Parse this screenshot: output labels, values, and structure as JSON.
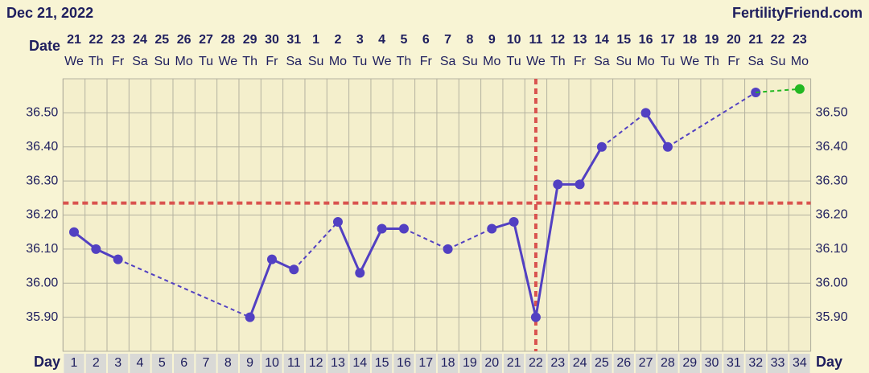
{
  "chart_data": {
    "type": "line",
    "title": "Dec 21, 2022",
    "source": "FertilityFriend.com",
    "date_label": "Date",
    "day_label": "Day",
    "dates": [
      "21",
      "22",
      "23",
      "24",
      "25",
      "26",
      "27",
      "28",
      "29",
      "30",
      "31",
      "1",
      "2",
      "3",
      "4",
      "5",
      "6",
      "7",
      "8",
      "9",
      "10",
      "11",
      "12",
      "13",
      "14",
      "15",
      "16",
      "17",
      "18",
      "19",
      "20",
      "21",
      "22",
      "23"
    ],
    "weekdays": [
      "We",
      "Th",
      "Fr",
      "Sa",
      "Su",
      "Mo",
      "Tu",
      "We",
      "Th",
      "Fr",
      "Sa",
      "Su",
      "Mo",
      "Tu",
      "We",
      "Th",
      "Fr",
      "Sa",
      "Su",
      "Mo",
      "Tu",
      "We",
      "Th",
      "Fr",
      "Sa",
      "Su",
      "Mo",
      "Tu",
      "We",
      "Th",
      "Fr",
      "Sa",
      "Su",
      "Mo"
    ],
    "categories": [
      "1",
      "2",
      "3",
      "4",
      "5",
      "6",
      "7",
      "8",
      "9",
      "10",
      "11",
      "12",
      "13",
      "14",
      "15",
      "16",
      "17",
      "18",
      "19",
      "20",
      "21",
      "22",
      "23",
      "24",
      "25",
      "26",
      "27",
      "28",
      "29",
      "30",
      "31",
      "32",
      "33",
      "34"
    ],
    "series": [
      {
        "color": "#5240c2",
        "values": [
          36.15,
          36.1,
          36.07,
          null,
          null,
          null,
          null,
          null,
          35.9,
          36.07,
          36.04,
          null,
          36.18,
          36.03,
          36.16,
          36.16,
          null,
          36.1,
          null,
          36.16,
          36.18,
          35.9,
          36.29,
          36.29,
          36.4,
          null,
          36.5,
          36.4,
          null,
          null,
          null,
          36.56,
          null,
          null
        ]
      },
      {
        "color": "#22b822",
        "values": [
          null,
          null,
          null,
          null,
          null,
          null,
          null,
          null,
          null,
          null,
          null,
          null,
          null,
          null,
          null,
          null,
          null,
          null,
          null,
          null,
          null,
          null,
          null,
          null,
          null,
          null,
          null,
          null,
          null,
          null,
          null,
          null,
          null,
          36.57
        ]
      }
    ],
    "ylim": [
      35.8,
      36.6
    ],
    "yticks": [
      {
        "value": 35.9,
        "label": "35.90"
      },
      {
        "value": 36.0,
        "label": "36.00"
      },
      {
        "value": 36.1,
        "label": "36.10"
      },
      {
        "value": 36.2,
        "label": "36.20"
      },
      {
        "value": 36.3,
        "label": "36.30"
      },
      {
        "value": 36.4,
        "label": "36.40"
      },
      {
        "value": 36.5,
        "label": "36.50"
      }
    ],
    "grid": true,
    "coverline": 36.235,
    "ovulation_day": 22,
    "coverline_color": "#d9534f"
  }
}
